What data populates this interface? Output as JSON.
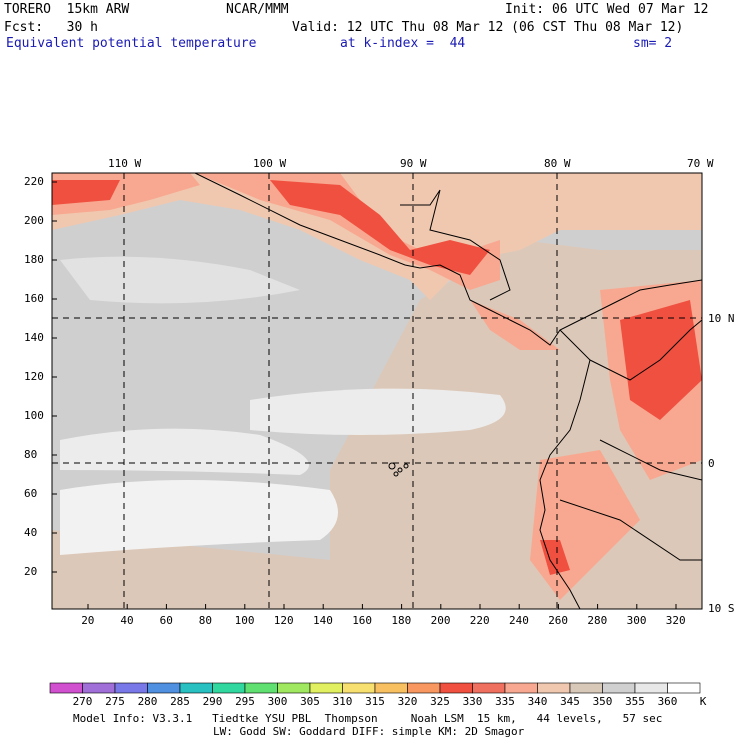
{
  "header": {
    "model": "TORERO  15km ARW",
    "center": "NCAR/MMM",
    "init": "Init: 06 UTC Wed 07 Mar 12",
    "fcst": "Fcst:   30 h",
    "valid": "Valid: 12 UTC Thu 08 Mar 12 (06 CST Thu 08 Mar 12)",
    "field": "Equivalent potential temperature",
    "level": "at k-index =  44",
    "smooth": "sm= 2"
  },
  "map": {
    "top_lon_labels": [
      "110 W",
      "100 W",
      "90 W",
      "80 W",
      "70 W"
    ],
    "right_lat_labels": [
      "10 N",
      "0",
      "10 S"
    ],
    "left_ticks": [
      "220",
      "200",
      "180",
      "160",
      "140",
      "120",
      "100",
      "80",
      "60",
      "40",
      "20"
    ],
    "bottom_ticks": [
      "20",
      "40",
      "60",
      "80",
      "100",
      "120",
      "140",
      "160",
      "180",
      "200",
      "220",
      "240",
      "260",
      "280",
      "300",
      "320"
    ]
  },
  "colorbar": {
    "colors": [
      "#d050d0",
      "#a070d8",
      "#7878e8",
      "#5090e0",
      "#28c0c0",
      "#30d8a0",
      "#60e070",
      "#a0e860",
      "#e0f060",
      "#f8e070",
      "#f8c060",
      "#f89860",
      "#f05040",
      "#f07060",
      "#f8a890",
      "#f0c8b0",
      "#d8c8b8",
      "#d0d0d0",
      "#e8e8e8",
      "#ffffff"
    ],
    "labels": [
      "270",
      "275",
      "280",
      "285",
      "290",
      "295",
      "300",
      "305",
      "310",
      "315",
      "320",
      "325",
      "330",
      "335",
      "340",
      "345",
      "350",
      "355",
      "360"
    ],
    "unit": "K"
  },
  "footer": {
    "line1": "Model Info: V3.3.1   Tiedtke YSU PBL  Thompson     Noah LSM  15 km,   44 levels,   57 sec",
    "line2": "LW: Godd SW: Goddard DIFF: simple KM: 2D Smagor"
  }
}
